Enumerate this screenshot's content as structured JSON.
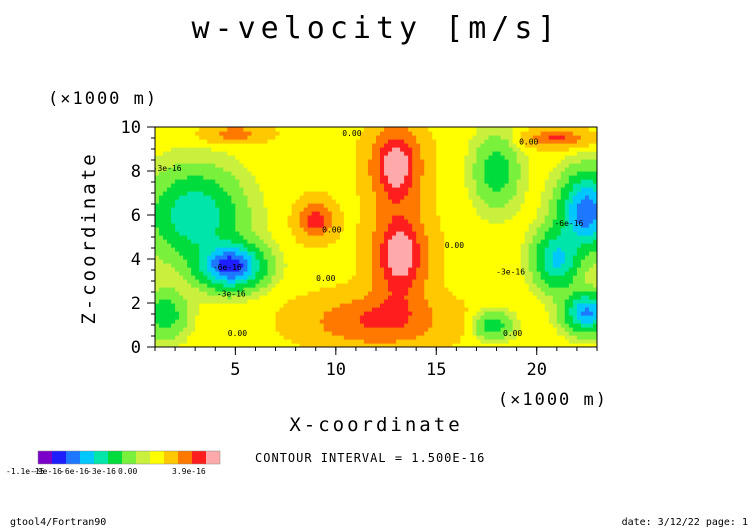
{
  "chart_data": {
    "type": "heatmap",
    "title": "w-velocity [m/s]",
    "xlabel": "X-coordinate",
    "ylabel": "Z-coordinate",
    "x_unit_label": "(×1000 m)",
    "y_unit_label": "(×1000 m)",
    "xlim": [
      1,
      23
    ],
    "ylim": [
      0,
      10
    ],
    "x_ticks": [
      5,
      10,
      15,
      20
    ],
    "y_ticks": [
      0,
      2,
      4,
      6,
      8,
      10
    ],
    "contour_interval_label": "CONTOUR INTERVAL = 1.500E-16",
    "contour_labels": [
      {
        "text": "0.00",
        "x": 10.8,
        "y": 9.6
      },
      {
        "text": "0.00",
        "x": 19.6,
        "y": 9.2
      },
      {
        "text": "-3e-16",
        "x": 1.6,
        "y": 8.0
      },
      {
        "text": "0.00",
        "x": 9.8,
        "y": 5.2
      },
      {
        "text": "0.00",
        "x": 9.5,
        "y": 3.0
      },
      {
        "text": "0.00",
        "x": 15.9,
        "y": 4.5
      },
      {
        "text": "-3e-16",
        "x": 18.7,
        "y": 3.3
      },
      {
        "text": "-6e-16",
        "x": 21.6,
        "y": 5.5
      },
      {
        "text": "-6e-16",
        "x": 4.6,
        "y": 3.5
      },
      {
        "text": "-3e-16",
        "x": 4.8,
        "y": 2.3
      },
      {
        "text": "0.00",
        "x": 5.1,
        "y": 0.5
      },
      {
        "text": "0.00",
        "x": 18.8,
        "y": 0.5
      }
    ],
    "levels": [
      {
        "color": "#7B00C8",
        "min": -1.1e-15
      },
      {
        "color": "#1E1EFF",
        "min": -9e-16
      },
      {
        "color": "#1E78FF",
        "min": -7.5e-16
      },
      {
        "color": "#00C8FF",
        "min": -6e-16
      },
      {
        "color": "#00E6AA",
        "min": -4.5e-16
      },
      {
        "color": "#00DC3C",
        "min": -3e-16
      },
      {
        "color": "#78F03C",
        "min": -1.5e-16
      },
      {
        "color": "#C8F03C",
        "min": -5e-17
      },
      {
        "color": "#FFFF00",
        "min": 0.0
      },
      {
        "color": "#FFC800",
        "min": 5e-17
      },
      {
        "color": "#FF7800",
        "min": 1.5e-16
      },
      {
        "color": "#FF1E1E",
        "min": 2.5e-16
      },
      {
        "color": "#FFAAAA",
        "min": 3.2e-16
      }
    ],
    "colorbar_labels": [
      "-1.1e-15",
      "-9e-16",
      "-6e-16",
      "-3e-16",
      "0.00",
      "3.9e-16"
    ],
    "field_sources": [
      {
        "x": 13.0,
        "z": 8.3,
        "amp": 3.6e-16,
        "sx": 1.3,
        "sz": 1.8
      },
      {
        "x": 13.2,
        "z": 4.2,
        "amp": 3.7e-16,
        "sx": 1.4,
        "sz": 2.0
      },
      {
        "x": 12.0,
        "z": 1.2,
        "amp": 2.4e-16,
        "sx": 3.5,
        "sz": 1.2
      },
      {
        "x": 9.0,
        "z": 5.8,
        "amp": 2.8e-16,
        "sx": 0.9,
        "sz": 0.9
      },
      {
        "x": 21.0,
        "z": 9.5,
        "amp": 2.5e-16,
        "sx": 1.5,
        "sz": 0.4
      },
      {
        "x": 5.0,
        "z": 9.7,
        "amp": 1.8e-16,
        "sx": 1.6,
        "sz": 0.4
      },
      {
        "x": 4.8,
        "z": 3.7,
        "amp": -8.5e-16,
        "sx": 1.4,
        "sz": 0.9
      },
      {
        "x": 3.0,
        "z": 6.0,
        "amp": -4.5e-16,
        "sx": 2.0,
        "sz": 1.8
      },
      {
        "x": 22.5,
        "z": 6.2,
        "amp": -7.5e-16,
        "sx": 1.2,
        "sz": 1.5
      },
      {
        "x": 22.5,
        "z": 1.6,
        "amp": -6.5e-16,
        "sx": 1.0,
        "sz": 0.8
      },
      {
        "x": 21.0,
        "z": 4.0,
        "amp": -5e-16,
        "sx": 1.0,
        "sz": 1.2
      },
      {
        "x": 18.0,
        "z": 8.0,
        "amp": -2.5e-16,
        "sx": 1.0,
        "sz": 1.5
      },
      {
        "x": 17.8,
        "z": 1.0,
        "amp": -2.5e-16,
        "sx": 0.9,
        "sz": 0.6
      },
      {
        "x": 1.5,
        "z": 1.5,
        "amp": -2.5e-16,
        "sx": 1.0,
        "sz": 1.0
      }
    ]
  },
  "footer": {
    "left": "gtool4/Fortran90",
    "right": "date: 3/12/22 page: 1"
  }
}
